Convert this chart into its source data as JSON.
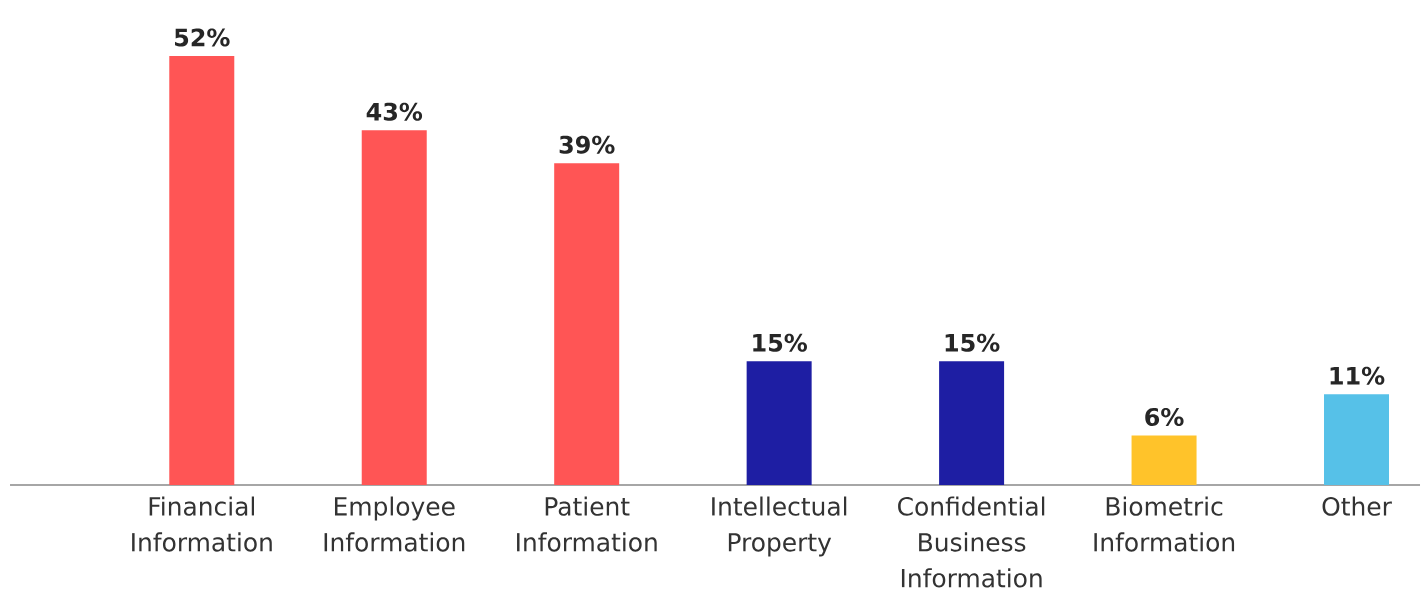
{
  "chart_data": {
    "type": "bar",
    "categories": [
      "Financial Information",
      "Employee Information",
      "Patient Information",
      "Intellectual Property",
      "Confidential Business Information",
      "Biometric Information",
      "Other"
    ],
    "values": [
      52,
      43,
      39,
      15,
      15,
      6,
      11
    ],
    "colors": [
      "#ff5555",
      "#ff5555",
      "#ff5555",
      "#1e1ea3",
      "#1e1ea3",
      "#ffc32a",
      "#56c1e8"
    ],
    "value_labels": [
      "52%",
      "43%",
      "39%",
      "15%",
      "15%",
      "6%",
      "11%"
    ],
    "tick_labels": "x"
  }
}
